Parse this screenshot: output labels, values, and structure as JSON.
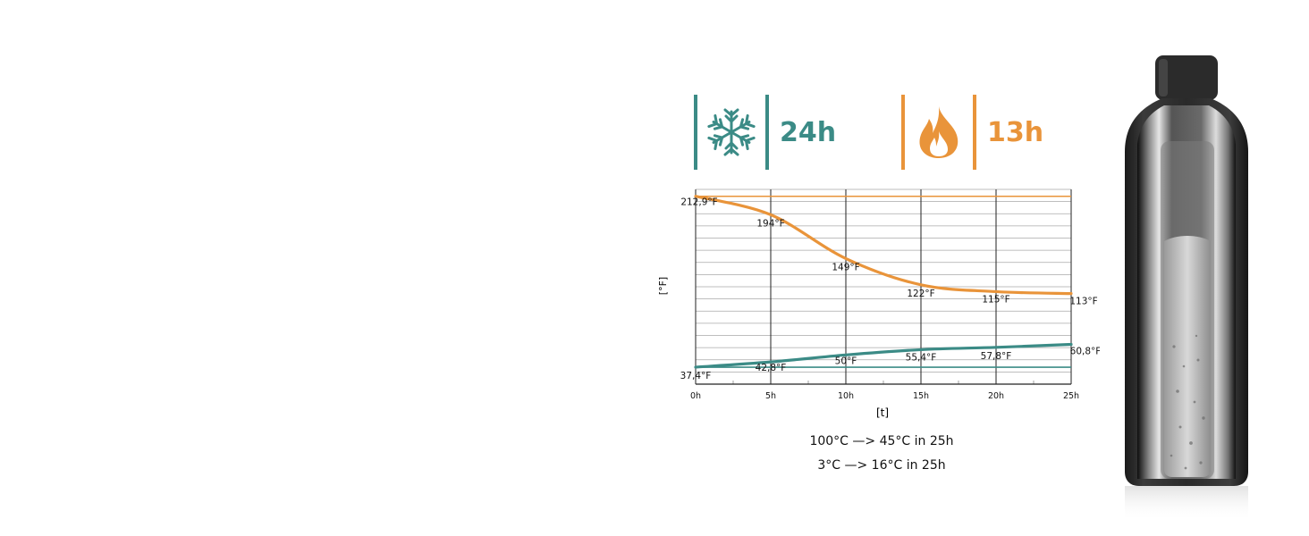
{
  "badges": {
    "cold": {
      "icon": "snowflake-icon",
      "value": "24h",
      "color": "#3b8b86"
    },
    "hot": {
      "icon": "flame-icon",
      "value": "13h",
      "color": "#e9943a"
    }
  },
  "chart_data": {
    "type": "line",
    "xlabel": "[t]",
    "ylabel": "[°F]",
    "x": [
      0,
      5,
      10,
      15,
      20,
      25
    ],
    "x_tick_labels": [
      "0h",
      "5h",
      "10h",
      "15h",
      "20h",
      "25h"
    ],
    "ylim": [
      20,
      220
    ],
    "grid": true,
    "series": [
      {
        "color": "#e9943a",
        "values": [
          212.9,
          194,
          149,
          122,
          115,
          113
        ],
        "labels": [
          "212,9°F",
          "194°F",
          "149°F",
          "122°F",
          "115°F",
          "113°F"
        ]
      },
      {
        "color": "#3b8b86",
        "values": [
          37.4,
          42.8,
          50,
          55.4,
          57.8,
          60.8
        ],
        "labels": [
          "37,4°F",
          "42,8°F",
          "50°F",
          "55,4°F",
          "57,8°F",
          "60,8°F"
        ]
      }
    ],
    "reference_lines": [
      {
        "value": 212.9,
        "color": "#e9943a"
      },
      {
        "value": 37.4,
        "color": "#3b8b86"
      }
    ]
  },
  "captions": {
    "hot": "100°C —> 45°C in 25h",
    "cold": "3°C —> 16°C in 25h"
  }
}
